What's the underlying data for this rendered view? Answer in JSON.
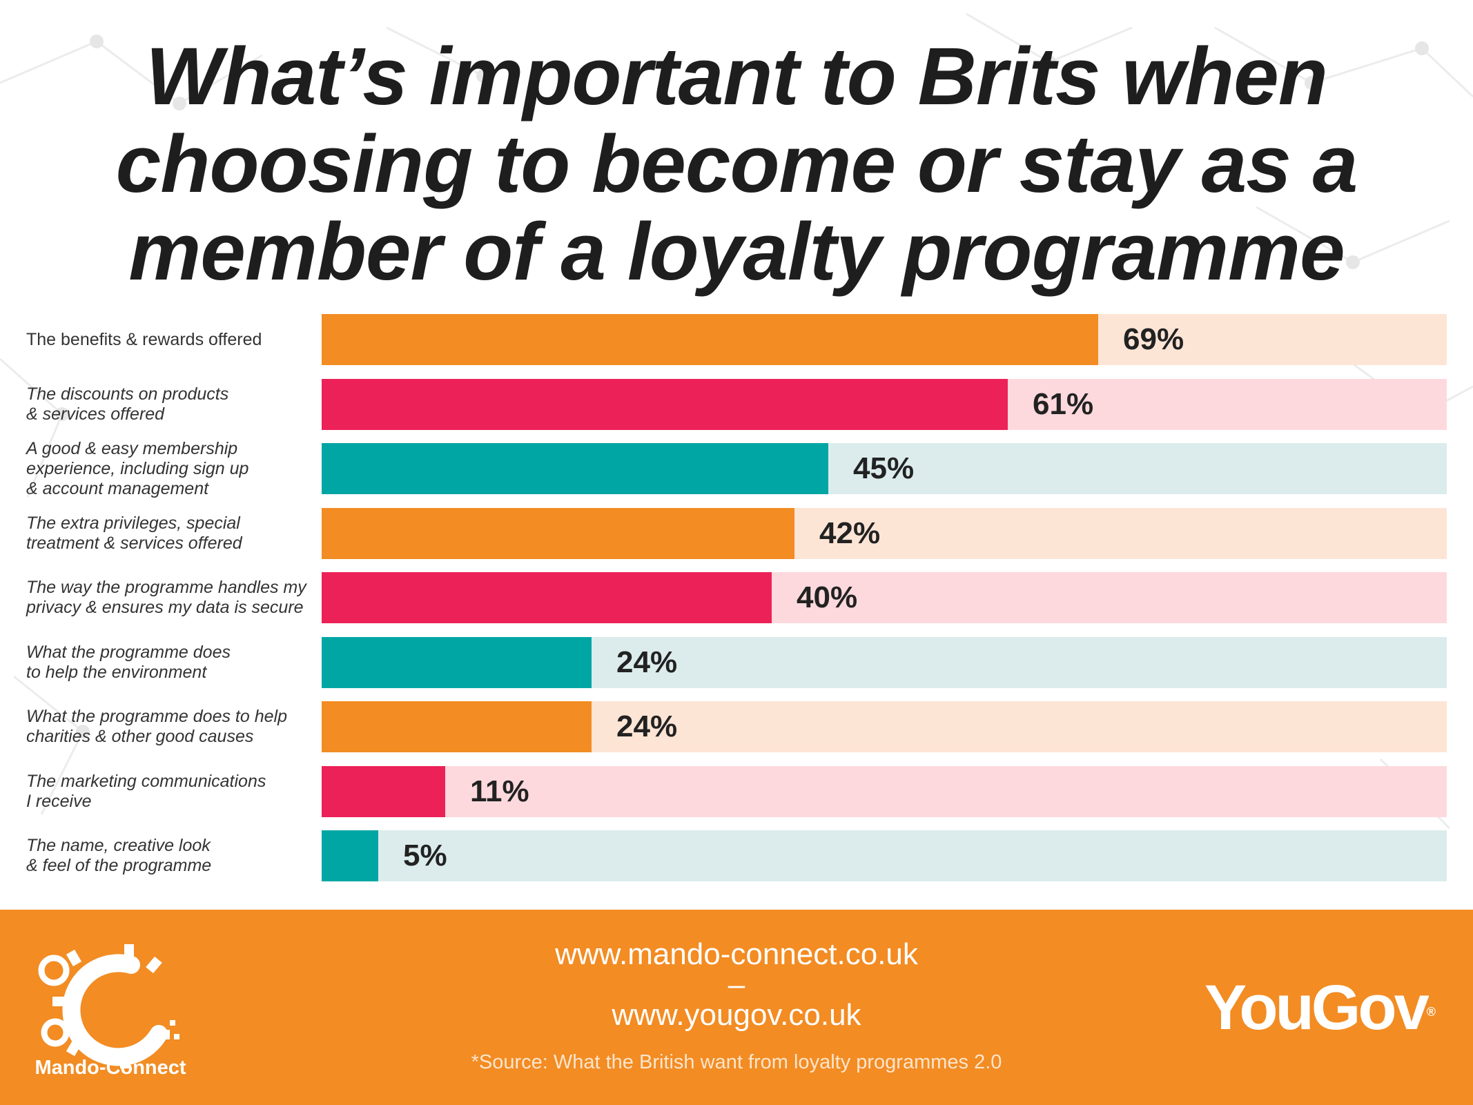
{
  "title_lines": [
    "What’s important to Brits when",
    "choosing to become or stay as a",
    "member of a loyalty programme"
  ],
  "chart_data": {
    "type": "bar",
    "orientation": "horizontal",
    "title": "What’s important to Brits when choosing to become or stay as a member of a loyalty programme",
    "categories": [
      [
        "The benefits & rewards offered"
      ],
      [
        "The discounts on products",
        "& services offered"
      ],
      [
        "A good & easy membership",
        "experience, including sign up",
        "& account management"
      ],
      [
        "The extra privileges, special",
        "treatment & services offered"
      ],
      [
        "The way the programme handles my",
        "privacy & ensures my data is secure"
      ],
      [
        "What the programme does",
        "to help the environment"
      ],
      [
        "What the programme does to help",
        "charities & other good causes"
      ],
      [
        "The marketing communications",
        "I receive"
      ],
      [
        "The name, creative look",
        "& feel of the programme"
      ]
    ],
    "values": [
      69,
      61,
      45,
      42,
      40,
      24,
      24,
      11,
      5
    ],
    "value_labels": [
      "69%",
      "61%",
      "45%",
      "42%",
      "40%",
      "24%",
      "24%",
      "11%",
      "5%"
    ],
    "xlim": [
      0,
      100
    ],
    "unit": "%",
    "colors": [
      "#f28c23",
      "#ec2158",
      "#00a6a3",
      "#f28c23",
      "#ec2158",
      "#00a6a3",
      "#f28c23",
      "#ec2158",
      "#00a6a3"
    ],
    "track_colors": [
      "#fde5d6",
      "#fdd9dd",
      "#dcecec",
      "#fde5d6",
      "#fdd9dd",
      "#dcecec",
      "#fde5d6",
      "#fdd9dd",
      "#dcecec"
    ],
    "label_italic": [
      false,
      true,
      true,
      true,
      true,
      true,
      true,
      true,
      true
    ]
  },
  "footer": {
    "url_1": "www.mando-connect.co.uk",
    "separator": "–",
    "url_2": "www.yougov.co.uk",
    "source": "*Source: What the British want from loyalty programmes 2.0",
    "mando_logo_text": "Mando-Connect",
    "yougov_logo_text": "YouGov",
    "yougov_mark": "®",
    "color": "#f28c23"
  }
}
